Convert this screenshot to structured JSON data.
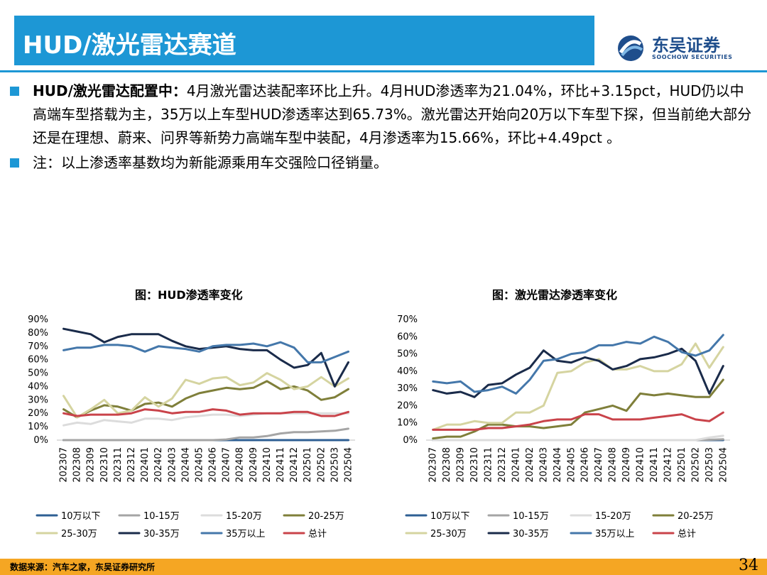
{
  "header": {
    "title": "HUD/激光雷达赛道",
    "logo_cn": "东吴证券",
    "logo_en": "SOOCHOW SECURITIES"
  },
  "bullets": [
    {
      "lead": "HUD/激光雷达配置中：",
      "text": "4月激光雷达装配率环比上升。4月HUD渗透率为21.04%，环比+3.15pct，HUD仍以中高端车型搭载为主，35万以上车型HUD渗透率达到65.73%。激光雷达开始向20万以下车型下探，但当前绝大部分还是在理想、蔚来、问界等新势力高端车型中装配，4月渗透率为15.66%，环比+4.49pct 。"
    },
    {
      "lead": "",
      "text": "注：以上渗透率基数均为新能源乘用车交强险口径销量。"
    }
  ],
  "footer": {
    "source": "数据来源：汽车之家，东吴证券研究所",
    "page": "34"
  },
  "chart_data": [
    {
      "type": "line",
      "title": "图：HUD渗透率变化",
      "ylim": [
        0,
        90
      ],
      "yticks": [
        "0%",
        "10%",
        "20%",
        "30%",
        "40%",
        "50%",
        "60%",
        "70%",
        "80%",
        "90%"
      ],
      "legend_position": "bottom",
      "categories": [
        "202307",
        "202308",
        "202309",
        "202310",
        "202311",
        "202312",
        "202401",
        "202402",
        "202403",
        "202404",
        "202405",
        "202406",
        "202407",
        "202408",
        "202409",
        "202410",
        "202411",
        "202412",
        "202501",
        "202502",
        "202503",
        "202504"
      ],
      "series": [
        {
          "name": "10万以下",
          "color": "#2e5f93",
          "values": [
            0,
            0,
            0,
            0,
            0,
            0,
            0,
            0,
            0,
            0,
            0,
            0,
            0,
            0,
            0,
            0,
            0,
            0,
            0,
            0,
            0,
            0
          ]
        },
        {
          "name": "10-15万",
          "color": "#a5a5a5",
          "values": [
            0,
            0,
            0,
            0,
            0,
            0,
            0,
            0,
            0,
            0,
            0,
            0,
            0.5,
            2,
            2,
            3,
            5,
            6,
            6,
            6.5,
            7,
            8.5
          ]
        },
        {
          "name": "15-20万",
          "color": "#dcdcdc",
          "values": [
            11,
            13,
            12,
            15,
            14,
            13,
            16,
            16,
            15,
            17,
            18,
            19,
            19,
            18,
            19,
            20,
            20,
            20,
            20,
            20,
            20,
            20
          ]
        },
        {
          "name": "20-25万",
          "color": "#7f7f3a",
          "values": [
            23,
            17,
            22,
            26,
            25,
            22,
            27,
            28,
            25,
            31,
            35,
            37,
            39,
            38,
            39,
            44,
            38,
            40,
            37,
            30,
            32,
            38
          ]
        },
        {
          "name": "25-30万",
          "color": "#d5d4a0",
          "values": [
            33,
            17,
            23,
            30,
            20,
            22,
            32,
            25,
            31,
            45,
            42,
            46,
            47,
            41,
            43,
            50,
            45,
            38,
            40,
            47,
            40,
            46
          ]
        },
        {
          "name": "30-35万",
          "color": "#1a2b4a",
          "values": [
            83,
            81,
            79,
            73,
            77,
            79,
            79,
            79,
            74,
            70,
            68,
            69,
            70,
            68,
            67,
            67,
            60,
            54,
            56,
            65,
            40,
            58
          ]
        },
        {
          "name": "35万以上",
          "color": "#4477aa",
          "values": [
            67,
            69,
            69,
            71,
            71,
            70,
            66,
            70,
            69,
            68,
            66,
            70,
            71,
            71,
            72,
            70,
            73,
            69,
            58,
            58,
            62,
            66
          ]
        },
        {
          "name": "总计",
          "color": "#c9434a",
          "values": [
            20,
            18,
            19,
            19,
            19,
            20,
            23,
            22,
            20,
            21,
            21,
            23,
            22,
            19,
            20,
            20,
            20,
            21,
            21,
            18,
            18,
            21
          ]
        }
      ]
    },
    {
      "type": "line",
      "title": "图：激光雷达渗透率变化",
      "ylim": [
        0,
        70
      ],
      "yticks": [
        "0%",
        "10%",
        "20%",
        "30%",
        "40%",
        "50%",
        "60%",
        "70%"
      ],
      "legend_position": "bottom",
      "categories": [
        "202307",
        "202308",
        "202309",
        "202310",
        "202311",
        "202312",
        "202401",
        "202402",
        "202403",
        "202404",
        "202405",
        "202406",
        "202407",
        "202408",
        "202409",
        "202410",
        "202411",
        "202412",
        "202501",
        "202502",
        "202503",
        "202504"
      ],
      "series": [
        {
          "name": "10万以下",
          "color": "#2e5f93",
          "values": [
            0,
            0,
            0,
            0,
            0,
            0,
            0,
            0,
            0,
            0,
            0,
            0,
            0,
            0,
            0,
            0,
            0,
            0,
            0,
            0,
            0,
            0
          ]
        },
        {
          "name": "10-15万",
          "color": "#a5a5a5",
          "values": [
            0,
            0,
            0,
            0,
            0,
            0,
            0,
            0,
            0,
            0,
            0,
            0,
            0,
            0,
            0,
            0,
            0,
            0,
            0,
            0,
            0.2,
            0.5
          ]
        },
        {
          "name": "15-20万",
          "color": "#dcdcdc",
          "values": [
            0,
            0,
            0,
            0,
            0,
            0,
            0,
            0,
            0,
            0,
            0,
            0,
            0,
            0,
            0,
            0,
            0,
            0,
            0,
            0,
            1.5,
            2.5
          ]
        },
        {
          "name": "20-25万",
          "color": "#7f7f3a",
          "values": [
            1,
            2,
            2,
            5,
            9,
            9,
            8,
            8,
            7,
            8,
            9,
            16,
            18,
            20,
            17,
            27,
            26,
            27,
            26,
            25,
            25,
            35
          ]
        },
        {
          "name": "25-30万",
          "color": "#d5d4a0",
          "values": [
            6,
            9,
            9,
            11,
            10,
            10,
            16,
            16,
            20,
            39,
            40,
            45,
            47,
            41,
            41,
            43,
            40,
            40,
            44,
            56,
            42,
            54
          ]
        },
        {
          "name": "30-35万",
          "color": "#1a2b4a",
          "values": [
            29,
            27,
            28,
            25,
            32,
            33,
            38,
            42,
            52,
            46,
            45,
            48,
            46,
            41,
            43,
            47,
            48,
            50,
            53,
            46,
            27,
            43
          ]
        },
        {
          "name": "35万以上",
          "color": "#4477aa",
          "values": [
            34,
            33,
            34,
            28,
            29,
            31,
            27,
            35,
            46,
            47,
            50,
            51,
            55,
            55,
            57,
            56,
            60,
            57,
            51,
            49,
            52,
            61
          ]
        },
        {
          "name": "总计",
          "color": "#c9434a",
          "values": [
            6,
            6,
            6,
            6,
            7,
            7,
            8,
            9,
            11,
            12,
            12,
            15,
            15,
            12,
            12,
            12,
            13,
            14,
            15,
            12,
            11,
            16
          ]
        }
      ]
    }
  ]
}
